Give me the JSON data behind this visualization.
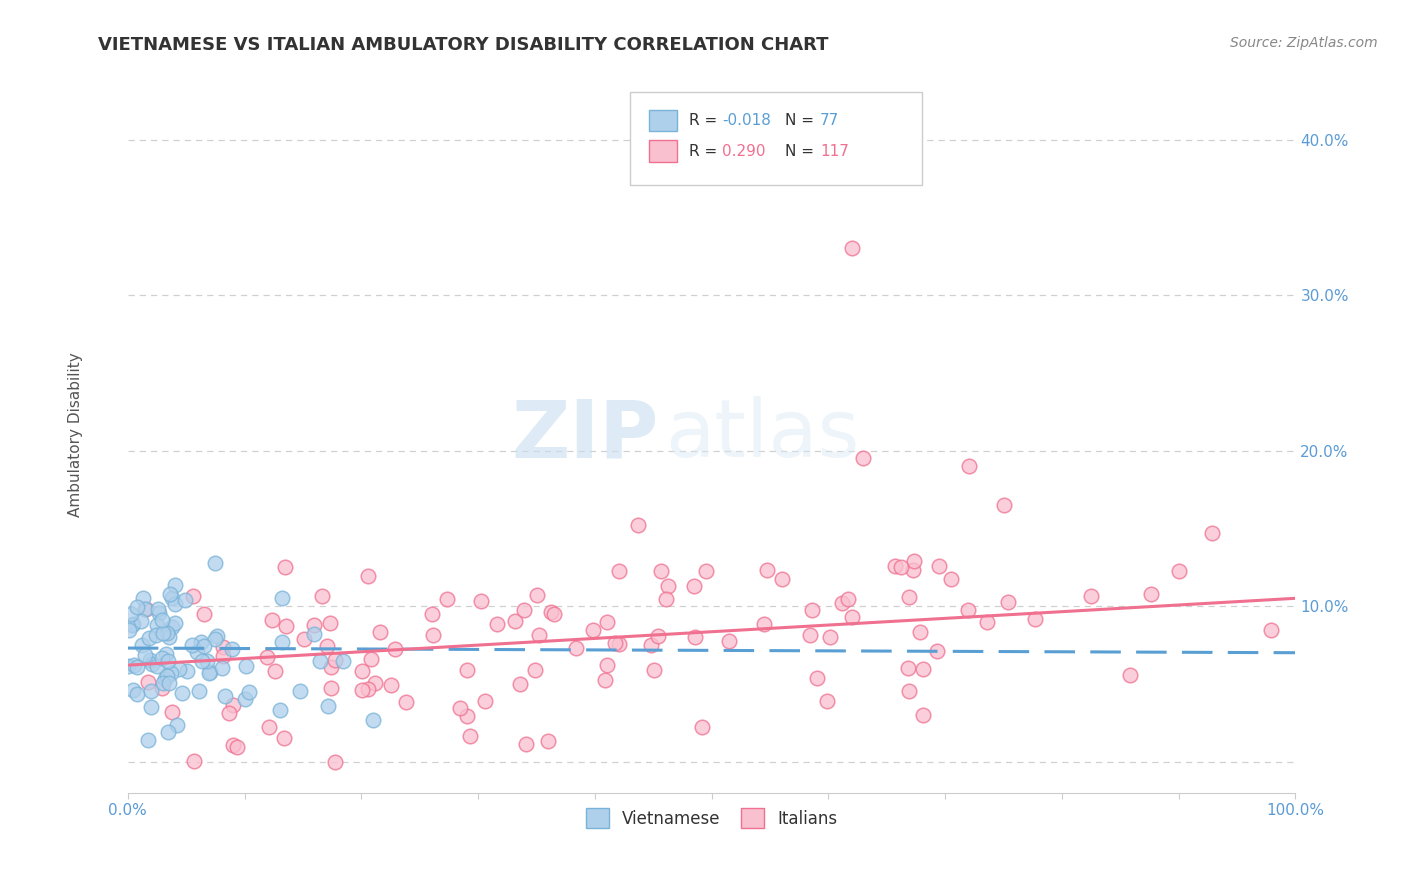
{
  "title": "VIETNAMESE VS ITALIAN AMBULATORY DISABILITY CORRELATION CHART",
  "source": "Source: ZipAtlas.com",
  "ylabel": "Ambulatory Disability",
  "xlim": [
    0.0,
    1.0
  ],
  "ylim": [
    -0.02,
    0.44
  ],
  "x_ticks": [
    0.0,
    0.1,
    0.2,
    0.3,
    0.4,
    0.5,
    0.6,
    0.7,
    0.8,
    0.9,
    1.0
  ],
  "x_tick_labels": [
    "0.0%",
    "",
    "",
    "",
    "",
    "",
    "",
    "",
    "",
    "",
    "100.0%"
  ],
  "y_ticks": [
    0.0,
    0.1,
    0.2,
    0.3,
    0.4
  ],
  "y_tick_labels": [
    "",
    "10.0%",
    "20.0%",
    "30.0%",
    "40.0%"
  ],
  "grid_color": "#d0d0d0",
  "watermark_zip": "ZIP",
  "watermark_atlas": "atlas",
  "legend_R_vietnamese": "-0.018",
  "legend_N_vietnamese": "77",
  "legend_R_italians": "0.290",
  "legend_N_italians": "117",
  "vietnamese_face_color": "#afd0eb",
  "vietnamese_edge_color": "#7ab3d8",
  "italian_face_color": "#f9c0d0",
  "italian_edge_color": "#f07090",
  "trend_vietnamese_color": "#5a9fd4",
  "trend_italian_color": "#f07090",
  "title_fontsize": 13,
  "label_fontsize": 11,
  "tick_fontsize": 11,
  "source_fontsize": 10,
  "background_color": "#ffffff",
  "tick_color": "#5b9bd5"
}
